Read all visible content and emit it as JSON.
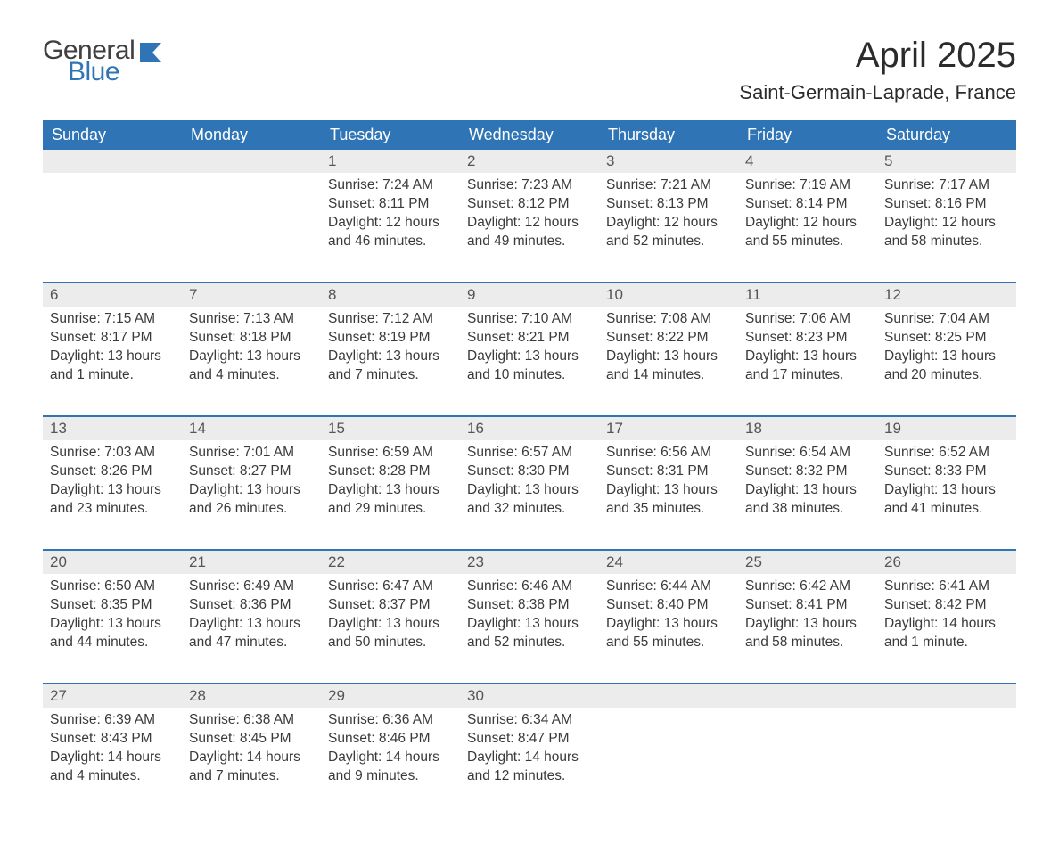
{
  "logo": {
    "word1": "General",
    "word2": "Blue"
  },
  "title": "April 2025",
  "location": "Saint-Germain-Laprade, France",
  "colors": {
    "header_bg": "#2f75b5",
    "header_text": "#ffffff",
    "daynum_bg": "#ececec",
    "accent": "#2f75b5",
    "body_text": "#3a3a3a"
  },
  "weekdays": [
    "Sunday",
    "Monday",
    "Tuesday",
    "Wednesday",
    "Thursday",
    "Friday",
    "Saturday"
  ],
  "weeks": [
    [
      {
        "n": "",
        "sunrise": "",
        "sunset": "",
        "daylight": ""
      },
      {
        "n": "",
        "sunrise": "",
        "sunset": "",
        "daylight": ""
      },
      {
        "n": "1",
        "sunrise": "7:24 AM",
        "sunset": "8:11 PM",
        "daylight": "12 hours and 46 minutes."
      },
      {
        "n": "2",
        "sunrise": "7:23 AM",
        "sunset": "8:12 PM",
        "daylight": "12 hours and 49 minutes."
      },
      {
        "n": "3",
        "sunrise": "7:21 AM",
        "sunset": "8:13 PM",
        "daylight": "12 hours and 52 minutes."
      },
      {
        "n": "4",
        "sunrise": "7:19 AM",
        "sunset": "8:14 PM",
        "daylight": "12 hours and 55 minutes."
      },
      {
        "n": "5",
        "sunrise": "7:17 AM",
        "sunset": "8:16 PM",
        "daylight": "12 hours and 58 minutes."
      }
    ],
    [
      {
        "n": "6",
        "sunrise": "7:15 AM",
        "sunset": "8:17 PM",
        "daylight": "13 hours and 1 minute."
      },
      {
        "n": "7",
        "sunrise": "7:13 AM",
        "sunset": "8:18 PM",
        "daylight": "13 hours and 4 minutes."
      },
      {
        "n": "8",
        "sunrise": "7:12 AM",
        "sunset": "8:19 PM",
        "daylight": "13 hours and 7 minutes."
      },
      {
        "n": "9",
        "sunrise": "7:10 AM",
        "sunset": "8:21 PM",
        "daylight": "13 hours and 10 minutes."
      },
      {
        "n": "10",
        "sunrise": "7:08 AM",
        "sunset": "8:22 PM",
        "daylight": "13 hours and 14 minutes."
      },
      {
        "n": "11",
        "sunrise": "7:06 AM",
        "sunset": "8:23 PM",
        "daylight": "13 hours and 17 minutes."
      },
      {
        "n": "12",
        "sunrise": "7:04 AM",
        "sunset": "8:25 PM",
        "daylight": "13 hours and 20 minutes."
      }
    ],
    [
      {
        "n": "13",
        "sunrise": "7:03 AM",
        "sunset": "8:26 PM",
        "daylight": "13 hours and 23 minutes."
      },
      {
        "n": "14",
        "sunrise": "7:01 AM",
        "sunset": "8:27 PM",
        "daylight": "13 hours and 26 minutes."
      },
      {
        "n": "15",
        "sunrise": "6:59 AM",
        "sunset": "8:28 PM",
        "daylight": "13 hours and 29 minutes."
      },
      {
        "n": "16",
        "sunrise": "6:57 AM",
        "sunset": "8:30 PM",
        "daylight": "13 hours and 32 minutes."
      },
      {
        "n": "17",
        "sunrise": "6:56 AM",
        "sunset": "8:31 PM",
        "daylight": "13 hours and 35 minutes."
      },
      {
        "n": "18",
        "sunrise": "6:54 AM",
        "sunset": "8:32 PM",
        "daylight": "13 hours and 38 minutes."
      },
      {
        "n": "19",
        "sunrise": "6:52 AM",
        "sunset": "8:33 PM",
        "daylight": "13 hours and 41 minutes."
      }
    ],
    [
      {
        "n": "20",
        "sunrise": "6:50 AM",
        "sunset": "8:35 PM",
        "daylight": "13 hours and 44 minutes."
      },
      {
        "n": "21",
        "sunrise": "6:49 AM",
        "sunset": "8:36 PM",
        "daylight": "13 hours and 47 minutes."
      },
      {
        "n": "22",
        "sunrise": "6:47 AM",
        "sunset": "8:37 PM",
        "daylight": "13 hours and 50 minutes."
      },
      {
        "n": "23",
        "sunrise": "6:46 AM",
        "sunset": "8:38 PM",
        "daylight": "13 hours and 52 minutes."
      },
      {
        "n": "24",
        "sunrise": "6:44 AM",
        "sunset": "8:40 PM",
        "daylight": "13 hours and 55 minutes."
      },
      {
        "n": "25",
        "sunrise": "6:42 AM",
        "sunset": "8:41 PM",
        "daylight": "13 hours and 58 minutes."
      },
      {
        "n": "26",
        "sunrise": "6:41 AM",
        "sunset": "8:42 PM",
        "daylight": "14 hours and 1 minute."
      }
    ],
    [
      {
        "n": "27",
        "sunrise": "6:39 AM",
        "sunset": "8:43 PM",
        "daylight": "14 hours and 4 minutes."
      },
      {
        "n": "28",
        "sunrise": "6:38 AM",
        "sunset": "8:45 PM",
        "daylight": "14 hours and 7 minutes."
      },
      {
        "n": "29",
        "sunrise": "6:36 AM",
        "sunset": "8:46 PM",
        "daylight": "14 hours and 9 minutes."
      },
      {
        "n": "30",
        "sunrise": "6:34 AM",
        "sunset": "8:47 PM",
        "daylight": "14 hours and 12 minutes."
      },
      {
        "n": "",
        "sunrise": "",
        "sunset": "",
        "daylight": ""
      },
      {
        "n": "",
        "sunrise": "",
        "sunset": "",
        "daylight": ""
      },
      {
        "n": "",
        "sunrise": "",
        "sunset": "",
        "daylight": ""
      }
    ]
  ],
  "labels": {
    "sunrise": "Sunrise: ",
    "sunset": "Sunset: ",
    "daylight": "Daylight: "
  }
}
